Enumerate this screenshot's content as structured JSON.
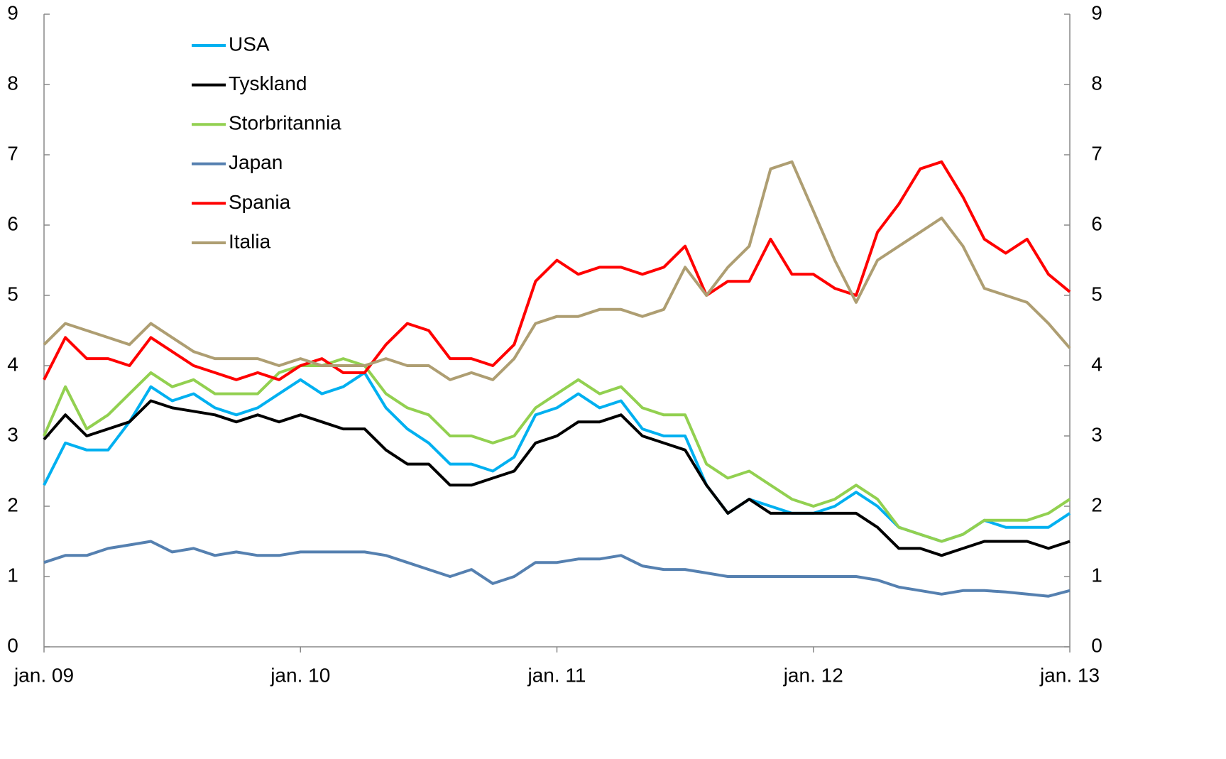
{
  "chart_data": {
    "type": "line",
    "categories": [
      "jan. 09",
      null,
      null,
      null,
      null,
      null,
      null,
      null,
      null,
      null,
      null,
      null,
      "jan. 10",
      null,
      null,
      null,
      null,
      null,
      null,
      null,
      null,
      null,
      null,
      null,
      "jan. 11",
      null,
      null,
      null,
      null,
      null,
      null,
      null,
      null,
      null,
      null,
      null,
      "jan. 12",
      null,
      null,
      null,
      null,
      null,
      null,
      null,
      null,
      null,
      null,
      null,
      "jan. 13"
    ],
    "series": [
      {
        "name": "USA",
        "color": "#00b0f0",
        "values": [
          2.3,
          2.9,
          2.8,
          2.8,
          3.2,
          3.7,
          3.5,
          3.6,
          3.4,
          3.3,
          3.4,
          3.6,
          3.8,
          3.6,
          3.7,
          3.9,
          3.4,
          3.1,
          2.9,
          2.6,
          2.6,
          2.5,
          2.7,
          3.3,
          3.4,
          3.6,
          3.4,
          3.5,
          3.1,
          3.0,
          3.0,
          2.3,
          1.9,
          2.1,
          2.0,
          1.9,
          1.9,
          2.0,
          2.2,
          2.0,
          1.7,
          1.6,
          1.5,
          1.6,
          1.8,
          1.7,
          1.7,
          1.7,
          1.9
        ]
      },
      {
        "name": "Tyskland",
        "color": "#000000",
        "values": [
          2.95,
          3.3,
          3.0,
          3.1,
          3.2,
          3.5,
          3.4,
          3.35,
          3.3,
          3.2,
          3.3,
          3.2,
          3.3,
          3.2,
          3.1,
          3.1,
          2.8,
          2.6,
          2.6,
          2.3,
          2.3,
          2.4,
          2.5,
          2.9,
          3.0,
          3.2,
          3.2,
          3.3,
          3.0,
          2.9,
          2.8,
          2.3,
          1.9,
          2.1,
          1.9,
          1.9,
          1.9,
          1.9,
          1.9,
          1.7,
          1.4,
          1.4,
          1.3,
          1.4,
          1.5,
          1.5,
          1.5,
          1.4,
          1.5
        ]
      },
      {
        "name": "Storbritannia",
        "color": "#92d050",
        "values": [
          3.0,
          3.7,
          3.1,
          3.3,
          3.6,
          3.9,
          3.7,
          3.8,
          3.6,
          3.6,
          3.6,
          3.9,
          4.0,
          4.0,
          4.1,
          4.0,
          3.6,
          3.4,
          3.3,
          3.0,
          3.0,
          2.9,
          3.0,
          3.4,
          3.6,
          3.8,
          3.6,
          3.7,
          3.4,
          3.3,
          3.3,
          2.6,
          2.4,
          2.5,
          2.3,
          2.1,
          2.0,
          2.1,
          2.3,
          2.1,
          1.7,
          1.6,
          1.5,
          1.6,
          1.8,
          1.8,
          1.8,
          1.9,
          2.1
        ]
      },
      {
        "name": "Japan",
        "color": "#5580b0",
        "values": [
          1.2,
          1.3,
          1.3,
          1.4,
          1.45,
          1.5,
          1.35,
          1.4,
          1.3,
          1.35,
          1.3,
          1.3,
          1.35,
          1.35,
          1.35,
          1.35,
          1.3,
          1.2,
          1.1,
          1.0,
          1.1,
          0.9,
          1.0,
          1.2,
          1.2,
          1.25,
          1.25,
          1.3,
          1.15,
          1.1,
          1.1,
          1.05,
          1.0,
          1.0,
          1.0,
          1.0,
          1.0,
          1.0,
          1.0,
          0.95,
          0.85,
          0.8,
          0.75,
          0.8,
          0.8,
          0.78,
          0.75,
          0.72,
          0.8
        ]
      },
      {
        "name": "Spania",
        "color": "#ff0000",
        "values": [
          3.8,
          4.4,
          4.1,
          4.1,
          4.0,
          4.4,
          4.2,
          4.0,
          3.9,
          3.8,
          3.9,
          3.8,
          4.0,
          4.1,
          3.9,
          3.9,
          4.3,
          4.6,
          4.5,
          4.1,
          4.1,
          4.0,
          4.3,
          5.2,
          5.5,
          5.3,
          5.4,
          5.4,
          5.3,
          5.4,
          5.7,
          5.0,
          5.2,
          5.2,
          5.8,
          5.3,
          5.3,
          5.1,
          5.0,
          5.9,
          6.3,
          6.8,
          6.9,
          6.4,
          5.8,
          5.6,
          5.8,
          5.3,
          5.05
        ]
      },
      {
        "name": "Italia",
        "color": "#ae9e72",
        "values": [
          4.3,
          4.6,
          4.5,
          4.4,
          4.3,
          4.6,
          4.4,
          4.2,
          4.1,
          4.1,
          4.1,
          4.0,
          4.1,
          4.0,
          4.0,
          4.0,
          4.1,
          4.0,
          4.0,
          3.8,
          3.9,
          3.8,
          4.1,
          4.6,
          4.7,
          4.7,
          4.8,
          4.8,
          4.7,
          4.8,
          5.4,
          5.0,
          5.4,
          5.7,
          6.8,
          6.9,
          6.2,
          5.5,
          4.9,
          5.5,
          5.7,
          5.9,
          6.1,
          5.7,
          5.1,
          5.0,
          4.9,
          4.6,
          4.25
        ]
      }
    ],
    "ylim": [
      0,
      9
    ],
    "yticks": [
      0,
      1,
      2,
      3,
      4,
      5,
      6,
      7,
      8,
      9
    ],
    "y2lim": [
      0,
      9
    ],
    "y2ticks": [
      0,
      1,
      2,
      3,
      4,
      5,
      6,
      7,
      8,
      9
    ],
    "legend": "upper-left"
  }
}
